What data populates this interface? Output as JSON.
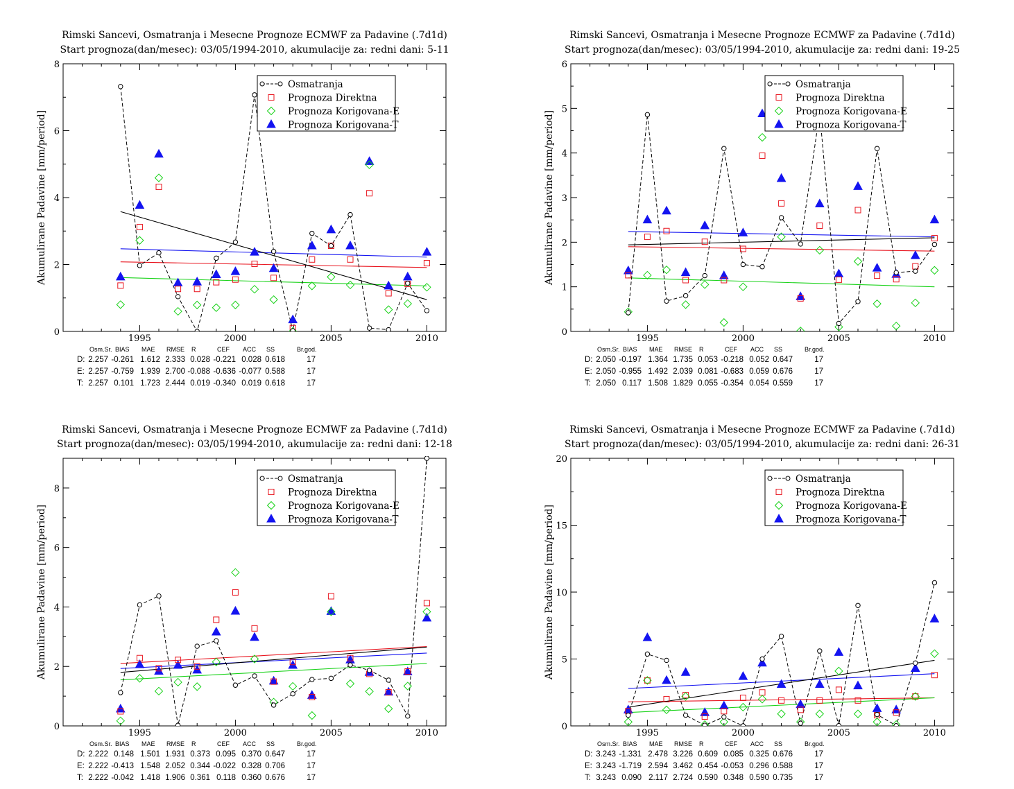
{
  "colors": {
    "obs": "#000000",
    "D": "#e8141e",
    "E": "#19d219",
    "T": "#1414f0"
  },
  "stats_headers": [
    "Osm.Sr.",
    "BIAS",
    "MAE",
    "RMSE",
    "R",
    "CEF",
    "ACC",
    "SS",
    "Br.god."
  ],
  "chart_data": [
    {
      "type": "scatter",
      "title": "Rimski Sancevi, Osmatranja i Mesecne Prognoze ECMWF za Padavine (.7d1d)",
      "subtitle": "Start prognoza(dan/mesec): 03/05/1994-2010, akumulacije za: redni dani: 5-11",
      "xlabel": "",
      "ylabel": "Akumulirane Padavine [mm/period]",
      "xlim": [
        1991.0,
        2011.0
      ],
      "ylim": [
        0,
        8
      ],
      "xticks": [
        1995,
        2000,
        2005,
        2010
      ],
      "yticks": [
        0,
        2,
        4,
        6,
        8
      ],
      "x": [
        1994,
        1995,
        1996,
        1997,
        1998,
        1999,
        2000,
        2001,
        2002,
        2003,
        2004,
        2005,
        2006,
        2007,
        2008,
        2009,
        2010
      ],
      "legend_position": "top-right",
      "legend": [
        "Osmatranja",
        "Prognoza Direktna",
        "Prognoza Korigovana-E",
        "Prognoza Korigovana-T"
      ],
      "series": [
        {
          "name": "Osmatranja",
          "values": [
            7.32,
            1.97,
            2.35,
            1.04,
            0.0,
            2.19,
            2.67,
            7.07,
            2.39,
            0.02,
            2.93,
            2.56,
            3.49,
            0.1,
            0.05,
            1.44,
            0.62
          ]
        },
        {
          "name": "Prognoza Direktna",
          "values": [
            1.37,
            3.12,
            4.32,
            1.27,
            1.27,
            1.47,
            1.55,
            2.02,
            1.6,
            0.1,
            2.15,
            2.56,
            2.15,
            4.13,
            1.14,
            1.42,
            2.04
          ]
        },
        {
          "name": "Prognoza Korigovana-E",
          "values": [
            0.8,
            2.72,
            4.59,
            0.6,
            0.79,
            0.71,
            0.79,
            1.26,
            0.95,
            0.0,
            1.36,
            1.63,
            1.39,
            4.98,
            0.65,
            0.83,
            1.32
          ]
        },
        {
          "name": "Prognoza Korigovana-T",
          "values": [
            1.63,
            3.77,
            5.3,
            1.45,
            1.48,
            1.7,
            1.79,
            2.37,
            1.88,
            0.35,
            2.56,
            3.04,
            2.56,
            5.08,
            1.36,
            1.63,
            2.37
          ]
        }
      ],
      "trendlines": [
        {
          "name": "Osmatranja",
          "y1994": 3.58,
          "y2010": 0.95
        },
        {
          "name": "Prognoza Direktna",
          "y1994": 2.08,
          "y2010": 1.91
        },
        {
          "name": "Prognoza Korigovana-E",
          "y1994": 1.61,
          "y2010": 1.36
        },
        {
          "name": "Prognoza Korigovana-T",
          "y1994": 2.47,
          "y2010": 2.22
        }
      ],
      "stats": [
        {
          "label": "D:",
          "values": [
            "2.257",
            "-0.261",
            "1.612",
            "2.333",
            "0.028",
            "-0.221",
            "0.028",
            "0.618",
            "17"
          ]
        },
        {
          "label": "E:",
          "values": [
            "2.257",
            "-0.759",
            "1.939",
            "2.700",
            "-0.088",
            "-0.636",
            "-0.077",
            "0.588",
            "17"
          ]
        },
        {
          "label": "T:",
          "values": [
            "2.257",
            "0.101",
            "1.723",
            "2.444",
            "0.019",
            "-0.340",
            "0.019",
            "0.618",
            "17"
          ]
        }
      ]
    },
    {
      "type": "scatter",
      "title": "Rimski Sancevi, Osmatranja i Mesecne Prognoze ECMWF za Padavine (.7d1d)",
      "subtitle": "Start prognoza(dan/mesec): 03/05/1994-2010, akumulacije za: redni dani: 19-25",
      "xlabel": "",
      "ylabel": "Akumulirane Padavine [mm/period]",
      "xlim": [
        1991.0,
        2011.0
      ],
      "ylim": [
        0,
        6
      ],
      "xticks": [
        1995,
        2000,
        2005,
        2010
      ],
      "yticks": [
        0,
        1,
        2,
        3,
        4,
        5,
        6
      ],
      "x": [
        1994,
        1995,
        1996,
        1997,
        1998,
        1999,
        2000,
        2001,
        2002,
        2003,
        2004,
        2005,
        2006,
        2007,
        2008,
        2009,
        2010
      ],
      "legend_position": "top-right",
      "legend": [
        "Osmatranja",
        "Prognoza Direktna",
        "Prognoza Korigovana-E",
        "Prognoza Korigovana-T"
      ],
      "series": [
        {
          "name": "Osmatranja",
          "values": [
            0.42,
            4.86,
            0.68,
            0.8,
            1.25,
            4.1,
            1.5,
            1.45,
            2.55,
            1.96,
            4.9,
            0.18,
            0.67,
            4.1,
            1.32,
            1.35,
            1.95
          ]
        },
        {
          "name": "Prognoza Direktna",
          "values": [
            1.26,
            2.12,
            2.25,
            1.15,
            2.01,
            1.15,
            1.85,
            3.94,
            2.87,
            0.74,
            2.37,
            1.16,
            2.72,
            1.25,
            1.17,
            1.46,
            2.09
          ]
        },
        {
          "name": "Prognoza Korigovana-E",
          "values": [
            0.44,
            1.26,
            1.38,
            0.6,
            1.05,
            0.2,
            1.0,
            4.35,
            2.12,
            0.01,
            1.82,
            0.1,
            1.57,
            0.62,
            0.12,
            0.64,
            1.37
          ]
        },
        {
          "name": "Prognoza Korigovana-T",
          "values": [
            1.36,
            2.5,
            2.7,
            1.32,
            2.37,
            1.25,
            2.21,
            4.88,
            3.43,
            0.78,
            2.86,
            1.29,
            3.25,
            1.42,
            1.28,
            1.7,
            2.5
          ]
        }
      ],
      "trendlines": [
        {
          "name": "Osmatranja",
          "y1994": 1.94,
          "y2010": 2.1
        },
        {
          "name": "Prognoza Direktna",
          "y1994": 1.9,
          "y2010": 1.8
        },
        {
          "name": "Prognoza Korigovana-E",
          "y1994": 1.2,
          "y2010": 1.0
        },
        {
          "name": "Prognoza Korigovana-T",
          "y1994": 2.24,
          "y2010": 2.12
        }
      ],
      "stats": [
        {
          "label": "D:",
          "values": [
            "2.050",
            "-0.197",
            "1.364",
            "1.735",
            "0.053",
            "-0.218",
            "0.052",
            "0.647",
            "17"
          ]
        },
        {
          "label": "E:",
          "values": [
            "2.050",
            "-0.955",
            "1.492",
            "2.039",
            "0.081",
            "-0.683",
            "0.059",
            "0.676",
            "17"
          ]
        },
        {
          "label": "T:",
          "values": [
            "2.050",
            "0.117",
            "1.508",
            "1.829",
            "0.055",
            "-0.354",
            "0.054",
            "0.559",
            "17"
          ]
        }
      ]
    },
    {
      "type": "scatter",
      "title": "Rimski Sancevi, Osmatranja i Mesecne Prognoze ECMWF za Padavine (.7d1d)",
      "subtitle": "Start prognoza(dan/mesec): 03/05/1994-2010, akumulacije za: redni dani: 12-18",
      "xlabel": "",
      "ylabel": "Akumulirane Padavine [mm/period]",
      "xlim": [
        1991.0,
        2011.0
      ],
      "ylim": [
        0,
        9
      ],
      "xticks": [
        1995,
        2000,
        2005,
        2010
      ],
      "yticks": [
        0,
        2,
        4,
        6,
        8
      ],
      "x": [
        1994,
        1995,
        1996,
        1997,
        1998,
        1999,
        2000,
        2001,
        2002,
        2003,
        2004,
        2005,
        2006,
        2007,
        2008,
        2009,
        2010
      ],
      "legend_position": "top-right",
      "legend": [
        "Osmatranja",
        "Prognoza Direktna",
        "Prognoza Korigovana-E",
        "Prognoza Korigovana-T"
      ],
      "series": [
        {
          "name": "Osmatranja",
          "values": [
            1.12,
            4.07,
            4.37,
            0.02,
            2.68,
            2.86,
            1.37,
            1.68,
            0.7,
            1.08,
            1.56,
            1.6,
            2.05,
            1.87,
            1.54,
            0.33,
            9.0
          ]
        },
        {
          "name": "Prognoza Direktna",
          "values": [
            0.49,
            2.28,
            1.94,
            2.22,
            2.0,
            3.57,
            4.49,
            3.28,
            1.49,
            2.15,
            0.97,
            4.36,
            2.28,
            1.75,
            1.13,
            1.83,
            4.13
          ]
        },
        {
          "name": "Prognoza Korigovana-E",
          "values": [
            0.17,
            1.6,
            1.17,
            1.47,
            1.32,
            2.15,
            5.16,
            2.25,
            0.8,
            1.33,
            0.35,
            3.84,
            1.42,
            1.16,
            0.58,
            1.34,
            3.84
          ]
        },
        {
          "name": "Prognoza Korigovana-T",
          "values": [
            0.57,
            2.06,
            1.84,
            2.04,
            1.88,
            3.16,
            3.86,
            2.98,
            1.51,
            2.04,
            1.03,
            3.85,
            2.22,
            1.8,
            1.14,
            1.82,
            3.63
          ]
        }
      ],
      "trendlines": [
        {
          "name": "Osmatranja",
          "y1994": 1.8,
          "y2010": 2.65
        },
        {
          "name": "Prognoza Direktna",
          "y1994": 2.1,
          "y2010": 2.67
        },
        {
          "name": "Prognoza Korigovana-E",
          "y1994": 1.55,
          "y2010": 2.1
        },
        {
          "name": "Prognoza Korigovana-T",
          "y1994": 1.93,
          "y2010": 2.45
        }
      ],
      "stats": [
        {
          "label": "D:",
          "values": [
            "2.222",
            "0.148",
            "1.501",
            "1.931",
            "0.373",
            "0.095",
            "0.370",
            "0.647",
            "17"
          ]
        },
        {
          "label": "E:",
          "values": [
            "2.222",
            "-0.413",
            "1.548",
            "2.052",
            "0.344",
            "-0.022",
            "0.328",
            "0.706",
            "17"
          ]
        },
        {
          "label": "T:",
          "values": [
            "2.222",
            "-0.042",
            "1.418",
            "1.906",
            "0.361",
            "0.118",
            "0.360",
            "0.676",
            "17"
          ]
        }
      ]
    },
    {
      "type": "scatter",
      "title": "Rimski Sancevi, Osmatranja i Mesecne Prognoze ECMWF za Padavine (.7d1d)",
      "subtitle": "Start prognoza(dan/mesec): 03/05/1994-2010, akumulacije za: redni dani: 26-31",
      "xlabel": "",
      "ylabel": "Akumulirane Padavine [mm/period]",
      "xlim": [
        1991.0,
        2011.0
      ],
      "ylim": [
        0,
        20
      ],
      "xticks": [
        1995,
        2000,
        2005,
        2010
      ],
      "yticks": [
        0,
        5,
        10,
        15,
        20
      ],
      "x": [
        1994,
        1995,
        1996,
        1997,
        1998,
        1999,
        2000,
        2001,
        2002,
        2003,
        2004,
        2005,
        2006,
        2007,
        2008,
        2009,
        2010
      ],
      "legend_position": "top-right",
      "legend": [
        "Osmatranja",
        "Prognoza Direktna",
        "Prognoza Korigovana-E",
        "Prognoza Korigovana-T"
      ],
      "series": [
        {
          "name": "Osmatranja",
          "values": [
            0.8,
            5.37,
            4.9,
            0.8,
            0.05,
            0.67,
            0.0,
            5.0,
            6.7,
            0.2,
            5.6,
            0.02,
            9.0,
            0.85,
            0.02,
            4.7,
            10.7
          ]
        },
        {
          "name": "Prognoza Direktna",
          "values": [
            1.1,
            3.4,
            2.0,
            2.3,
            0.7,
            1.1,
            2.1,
            2.5,
            1.9,
            1.2,
            1.9,
            2.7,
            1.9,
            0.8,
            1.0,
            2.2,
            3.8
          ]
        },
        {
          "name": "Prognoza Korigovana-E",
          "values": [
            0.3,
            3.4,
            1.2,
            2.2,
            0.1,
            0.3,
            1.4,
            2.0,
            0.9,
            0.3,
            0.9,
            4.1,
            0.9,
            0.3,
            0.1,
            2.2,
            5.4
          ]
        },
        {
          "name": "Prognoza Korigovana-T",
          "values": [
            1.2,
            6.6,
            3.4,
            4.0,
            1.0,
            1.5,
            3.7,
            4.7,
            3.1,
            1.6,
            3.1,
            5.5,
            3.0,
            1.3,
            1.2,
            4.3,
            8.0
          ]
        }
      ],
      "trendlines": [
        {
          "name": "Osmatranja",
          "y1994": 1.4,
          "y2010": 4.9
        },
        {
          "name": "Prognoza Direktna",
          "y1994": 1.8,
          "y2010": 2.1
        },
        {
          "name": "Prognoza Korigovana-E",
          "y1994": 1.0,
          "y2010": 2.1
        },
        {
          "name": "Prognoza Korigovana-T",
          "y1994": 2.8,
          "y2010": 3.9
        }
      ],
      "stats": [
        {
          "label": "D:",
          "values": [
            "3.243",
            "-1.331",
            "2.478",
            "3.226",
            "0.609",
            "0.085",
            "0.325",
            "0.676",
            "17"
          ]
        },
        {
          "label": "E:",
          "values": [
            "3.243",
            "-1.719",
            "2.594",
            "3.462",
            "0.454",
            "-0.053",
            "0.296",
            "0.588",
            "17"
          ]
        },
        {
          "label": "T:",
          "values": [
            "3.243",
            "0.090",
            "2.117",
            "2.724",
            "0.590",
            "0.348",
            "0.590",
            "0.735",
            "17"
          ]
        }
      ]
    }
  ]
}
